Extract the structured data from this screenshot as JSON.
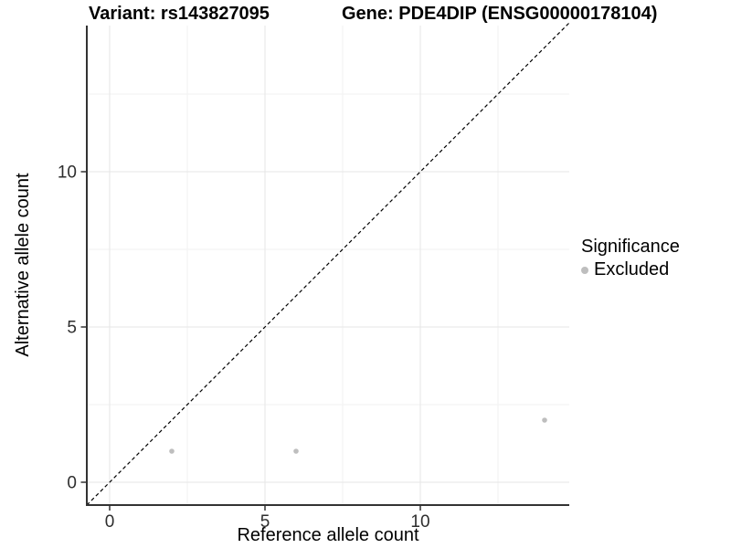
{
  "chart_data": {
    "type": "scatter",
    "title_left": "Variant: rs143827095",
    "title_right": "Gene: PDE4DIP (ENSG00000178104)",
    "xlabel": "Reference allele count",
    "ylabel": "Alternative allele count",
    "xlim": [
      -0.74,
      14.79
    ],
    "ylim": [
      -0.74,
      14.79
    ],
    "x_ticks": [
      0,
      5,
      10
    ],
    "y_ticks": [
      0,
      5,
      10
    ],
    "minor_ticks": [
      2.5,
      7.5,
      12.5
    ],
    "grid": true,
    "legend_position": "right",
    "identity_line": {
      "equation": "y = x",
      "style": "dashed",
      "color": "#000000"
    },
    "series": [
      {
        "name": "Excluded",
        "color": "#bebebe",
        "points": [
          {
            "x": 2,
            "y": 1
          },
          {
            "x": 6,
            "y": 1
          },
          {
            "x": 14,
            "y": 2
          }
        ]
      }
    ],
    "legend": {
      "title": "Significance",
      "items": [
        {
          "label": "Excluded",
          "color": "#bebebe"
        }
      ]
    },
    "colors": {
      "background": "#ffffff",
      "grid_major": "#e5e5e5",
      "grid_minor": "#f2f2f2",
      "axis_line": "#333333",
      "tick_text": "#2e2e2e",
      "point": "#bebebe"
    }
  }
}
